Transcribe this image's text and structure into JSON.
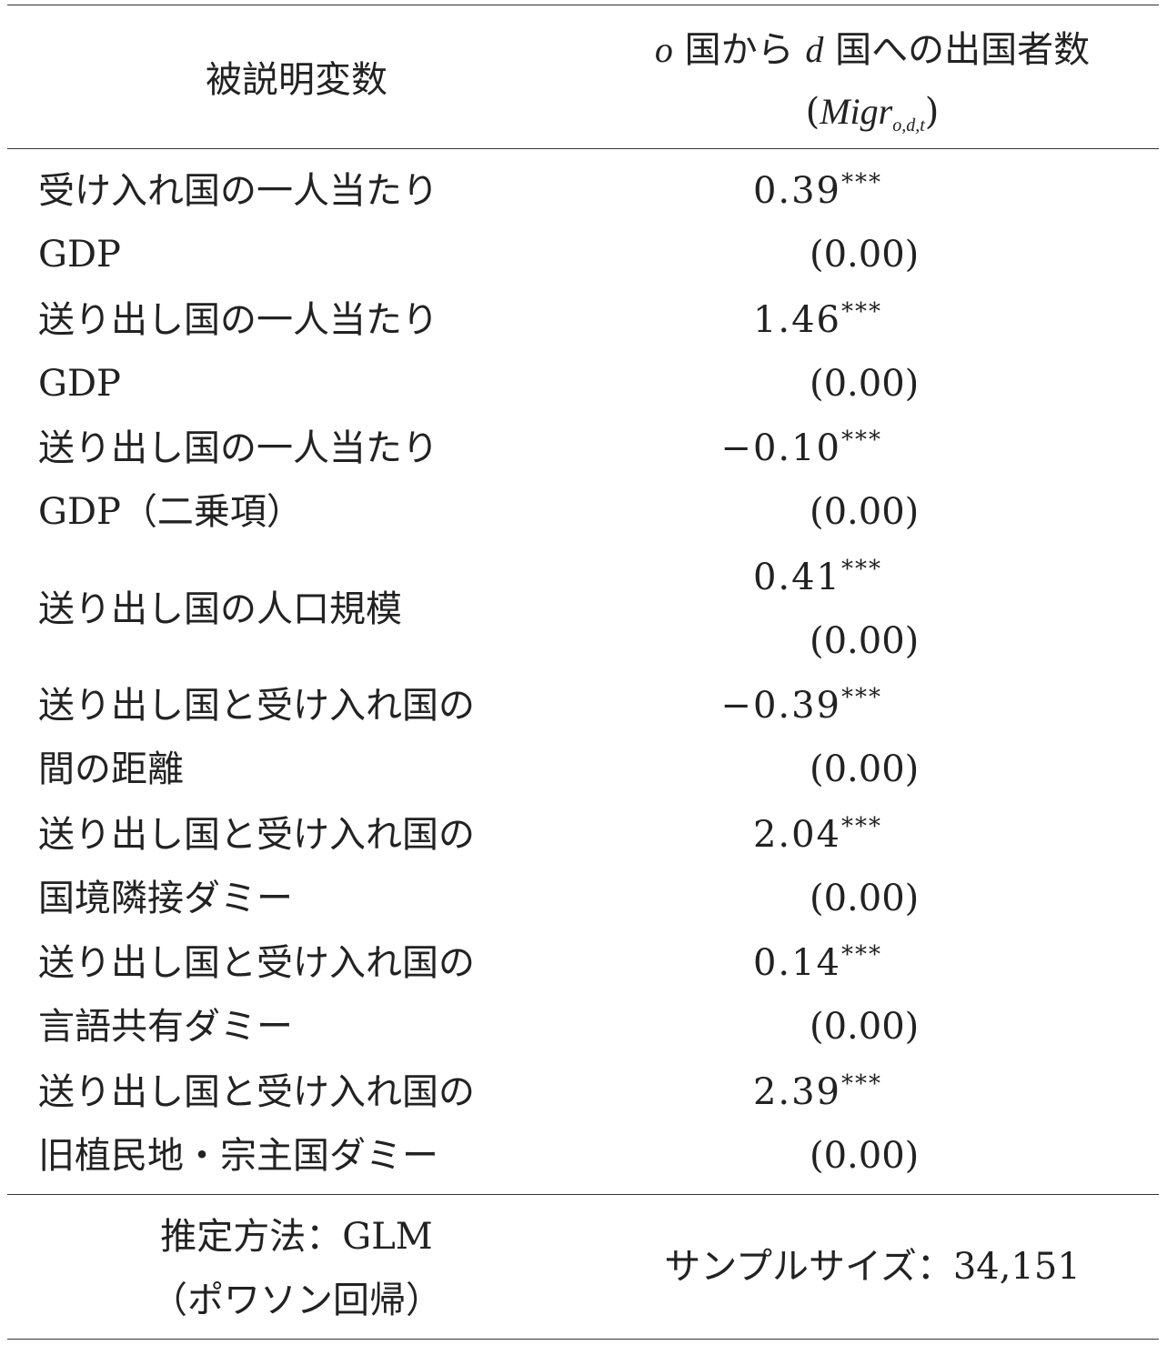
{
  "header": {
    "left": "被説明変数",
    "right_line1_o": "o",
    "right_line1_a": " 国から ",
    "right_line1_d": "d",
    "right_line1_b": " 国への出国者数",
    "right_line2_var": "Migr",
    "right_line2_sub": "o,d,t"
  },
  "rows": [
    {
      "label1": "受け入れ国の一人当たり",
      "label2": "GDP",
      "coef": "0.39",
      "stars": "***",
      "se": "(0.00)"
    },
    {
      "label1": "送り出し国の一人当たり",
      "label2": "GDP",
      "coef": "1.46",
      "stars": "***",
      "se": "(0.00)"
    },
    {
      "label1": "送り出し国の一人当たり",
      "label2": "GDP（二乗項）",
      "coef": "−0.10",
      "stars": "***",
      "se": "(0.00)"
    },
    {
      "label1": "送り出し国の人口規模",
      "label2": "",
      "coef": "0.41",
      "stars": "***",
      "se": "(0.00)"
    },
    {
      "label1": "送り出し国と受け入れ国の",
      "label2": "間の距離",
      "coef": "−0.39",
      "stars": "***",
      "se": "(0.00)"
    },
    {
      "label1": "送り出し国と受け入れ国の",
      "label2": "国境隣接ダミー",
      "coef": "2.04",
      "stars": "***",
      "se": "(0.00)"
    },
    {
      "label1": "送り出し国と受け入れ国の",
      "label2": "言語共有ダミー",
      "coef": "0.14",
      "stars": "***",
      "se": "(0.00)"
    },
    {
      "label1": "送り出し国と受け入れ国の",
      "label2": "旧植民地・宗主国ダミー",
      "coef": "2.39",
      "stars": "***",
      "se": "(0.00)"
    }
  ],
  "footer": {
    "method_line1": "推定方法：GLM",
    "method_line2": "（ポワソン回帰）",
    "sample_size": "サンプルサイズ：34,151"
  }
}
